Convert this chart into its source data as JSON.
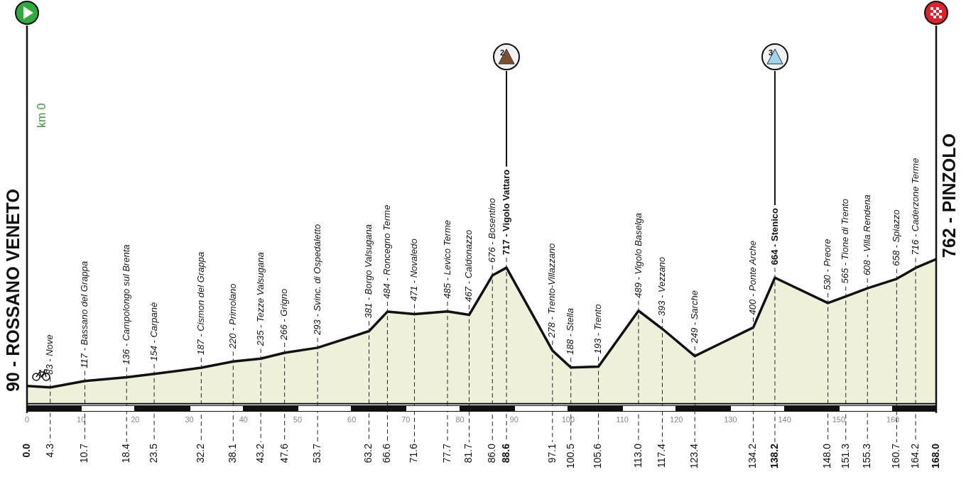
{
  "chart_data": {
    "type": "area",
    "x": [
      0,
      4.3,
      10.7,
      18.4,
      23.5,
      32.2,
      38.1,
      43.2,
      47.6,
      53.7,
      63.2,
      66.6,
      71.6,
      77.7,
      81.7,
      86.0,
      88.6,
      97.1,
      100.5,
      105.6,
      113.0,
      117.4,
      123.4,
      134.2,
      138.2,
      148.0,
      151.3,
      155.3,
      160.7,
      164.2,
      168.0
    ],
    "values": [
      90,
      83,
      117,
      136,
      154,
      187,
      220,
      235,
      266,
      293,
      381,
      484,
      471,
      485,
      467,
      676,
      717,
      278,
      188,
      193,
      489,
      393,
      249,
      400,
      664,
      530,
      565,
      608,
      658,
      716,
      762
    ],
    "value_labels": [
      "90 - ROSSANO VENETO",
      "83 - Nove",
      "117 - Bassano del Grappa",
      "136 - Campolongo sul Brenta",
      "154 - Carpanè",
      "187 - Cismon del Grappa",
      "220 - Primolano",
      "235 - Tezze Valsugana",
      "266 - Grigno",
      "293 - Svinc. di Ospedaletto",
      "381 - Borgo Valsugana",
      "484 - Roncegno Terme",
      "471 - Novaledo",
      "485 - Levico Terme",
      "467 - Caldonazzo",
      "676 - Bosentino",
      "717 - Vigolo Vattaro",
      "278 - Trento-Villazzano",
      "188 - Stella",
      "193 - Trento",
      "489 - Vigolo Baselga",
      "393 - Vezzano",
      "249 - Sarche",
      "400 - Ponte Arche",
      "664 - Stenico",
      "530 - Preore",
      "565 - Tione di Trento",
      "608 - Villa Rendena",
      "658 - Spiazzo",
      "716 - Caderzone Terme",
      "762 - PINZOLO"
    ],
    "color": "#111111",
    "xlim": [
      0,
      168
    ],
    "xticks": [
      {
        "value": 0,
        "label": "0.0"
      },
      {
        "value": 4.3,
        "label": "4.3"
      },
      {
        "value": 10.7,
        "label": "10.7"
      },
      {
        "value": 18.4,
        "label": "18.4"
      },
      {
        "value": 23.5,
        "label": "23.5"
      },
      {
        "value": 32.2,
        "label": "32.2"
      },
      {
        "value": 38.1,
        "label": "38.1"
      },
      {
        "value": 43.2,
        "label": "43.2"
      },
      {
        "value": 47.6,
        "label": "47.6"
      },
      {
        "value": 53.7,
        "label": "53.7"
      },
      {
        "value": 63.2,
        "label": "63.2"
      },
      {
        "value": 66.6,
        "label": "66.6"
      },
      {
        "value": 71.6,
        "label": "71.6"
      },
      {
        "value": 77.7,
        "label": "77.7"
      },
      {
        "value": 81.7,
        "label": "81.7"
      },
      {
        "value": 86.0,
        "label": "86.0"
      },
      {
        "value": 88.6,
        "label": "88.6"
      },
      {
        "value": 97.1,
        "label": "97.1"
      },
      {
        "value": 100.5,
        "label": "100.5"
      },
      {
        "value": 105.6,
        "label": "105.6"
      },
      {
        "value": 113.0,
        "label": "113.0"
      },
      {
        "value": 117.4,
        "label": "117.4"
      },
      {
        "value": 123.4,
        "label": "123.4"
      },
      {
        "value": 134.2,
        "label": "134.2"
      },
      {
        "value": 138.2,
        "label": "138.2"
      },
      {
        "value": 148.0,
        "label": "148.0"
      },
      {
        "value": 151.3,
        "label": "151.3"
      },
      {
        "value": 155.3,
        "label": "155.3"
      },
      {
        "value": 160.7,
        "label": "160.7"
      },
      {
        "value": 164.2,
        "label": "164.2"
      },
      {
        "value": 168.0,
        "label": "168.0"
      }
    ],
    "x2lim": [
      0,
      168
    ],
    "x2ticks": [
      0,
      10,
      20,
      30,
      40,
      50,
      60,
      70,
      80,
      90,
      100,
      110,
      120,
      130,
      140,
      150,
      160
    ],
    "ylim": [
      0,
      2000
    ],
    "tick_labels": "x",
    "ref_lines": [
      {
        "axis": "x",
        "value": 88.6
      },
      {
        "axis": "x",
        "value": 138.2
      }
    ],
    "annotations": [
      "km 0",
      "2",
      "3"
    ],
    "legend": false,
    "marker": "none"
  }
}
